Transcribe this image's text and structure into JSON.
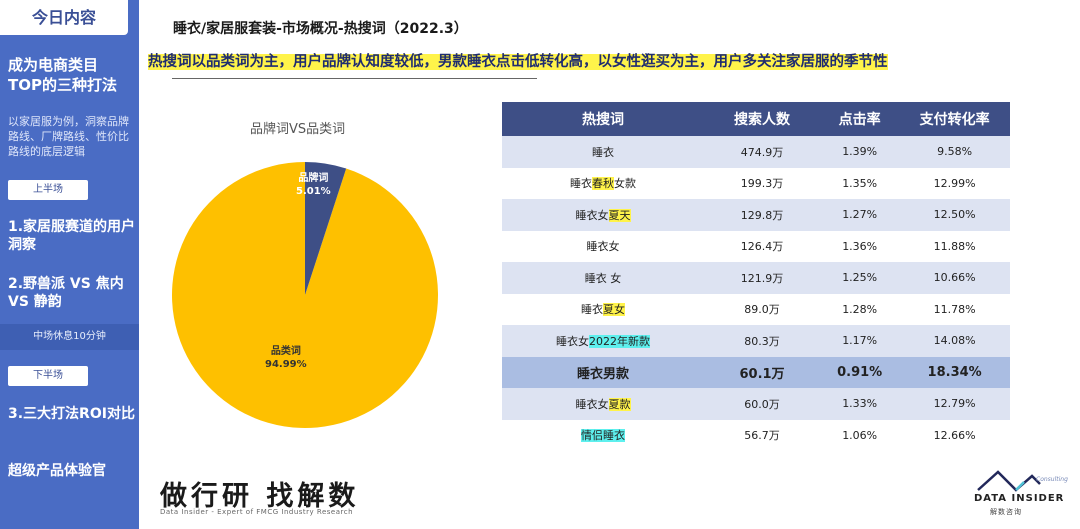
{
  "sidebar": {
    "today": "今日内容",
    "headline_1": "成为电商类目",
    "headline_2": "TOP的三种打法",
    "desc": "以家居服为例，洞察品牌路线、厂牌路线、性价比路线的底层逻辑",
    "first_half": "上半场",
    "item1": "1.家居服赛道的用户洞察",
    "item2": "2.野兽派 VS 焦内 VS 静韵",
    "break": "中场休息10分钟",
    "second_half": "下半场",
    "item3": "3.三大打法ROI对比",
    "final": "超级产品体验官"
  },
  "header": {
    "title": "睡衣/家居服套装-市场概况-热搜词（2022.3）",
    "banner_a": "热搜词以品类词为主，用户品牌认知度较低，",
    "banner_b": "男款睡衣点击低转化高",
    "banner_c": "，以女性逛买为主，用户多关注家居服的季节性"
  },
  "chart_data": {
    "type": "pie",
    "title": "品牌词VS品类词",
    "slices": [
      {
        "label": "品牌词",
        "value": 5.01,
        "display": "5.01%",
        "color": "#3e4f86"
      },
      {
        "label": "品类词",
        "value": 94.99,
        "display": "94.99%",
        "color": "#fec000"
      }
    ]
  },
  "table": {
    "headers": [
      "热搜词",
      "搜索人数",
      "点击率",
      "支付转化率"
    ],
    "rows": [
      {
        "w1": "睡衣",
        "w2": "",
        "w3": "",
        "tag": "",
        "search": "474.9万",
        "ctr": "1.39%",
        "cvr": "9.58%"
      },
      {
        "w1": "睡衣",
        "w2": "春秋",
        "w3": "女款",
        "tag": "y",
        "search": "199.3万",
        "ctr": "1.35%",
        "cvr": "12.99%"
      },
      {
        "w1": "睡衣女",
        "w2": "夏天",
        "w3": "",
        "tag": "y",
        "search": "129.8万",
        "ctr": "1.27%",
        "cvr": "12.50%"
      },
      {
        "w1": "睡衣女",
        "w2": "",
        "w3": "",
        "tag": "",
        "search": "126.4万",
        "ctr": "1.36%",
        "cvr": "11.88%"
      },
      {
        "w1": "睡衣 女",
        "w2": "",
        "w3": "",
        "tag": "",
        "search": "121.9万",
        "ctr": "1.25%",
        "cvr": "10.66%"
      },
      {
        "w1": "睡衣",
        "w2": "夏女",
        "w3": "",
        "tag": "y",
        "search": "89.0万",
        "ctr": "1.28%",
        "cvr": "11.78%"
      },
      {
        "w1": "睡衣女",
        "w2": "2022年新款",
        "w3": "",
        "tag": "c",
        "search": "80.3万",
        "ctr": "1.17%",
        "cvr": "14.08%"
      },
      {
        "w1": "睡衣男款",
        "w2": "",
        "w3": "",
        "tag": "",
        "search": "60.1万",
        "ctr": "0.91%",
        "cvr": "18.34%",
        "bold": true
      },
      {
        "w1": "睡衣女",
        "w2": "夏款",
        "w3": "",
        "tag": "y",
        "search": "60.0万",
        "ctr": "1.33%",
        "cvr": "12.79%"
      },
      {
        "w1": "",
        "w2": "情侣睡衣",
        "w3": "",
        "tag": "c",
        "search": "56.7万",
        "ctr": "1.06%",
        "cvr": "12.66%"
      }
    ]
  },
  "footer": {
    "logo": "做行研 找解数",
    "logo_sub": "Data Insider - Expert of FMCG Industry Research",
    "di_name": "DATA INSIDER",
    "di_cn": "解数咨询",
    "di_consult": "Consulting"
  }
}
